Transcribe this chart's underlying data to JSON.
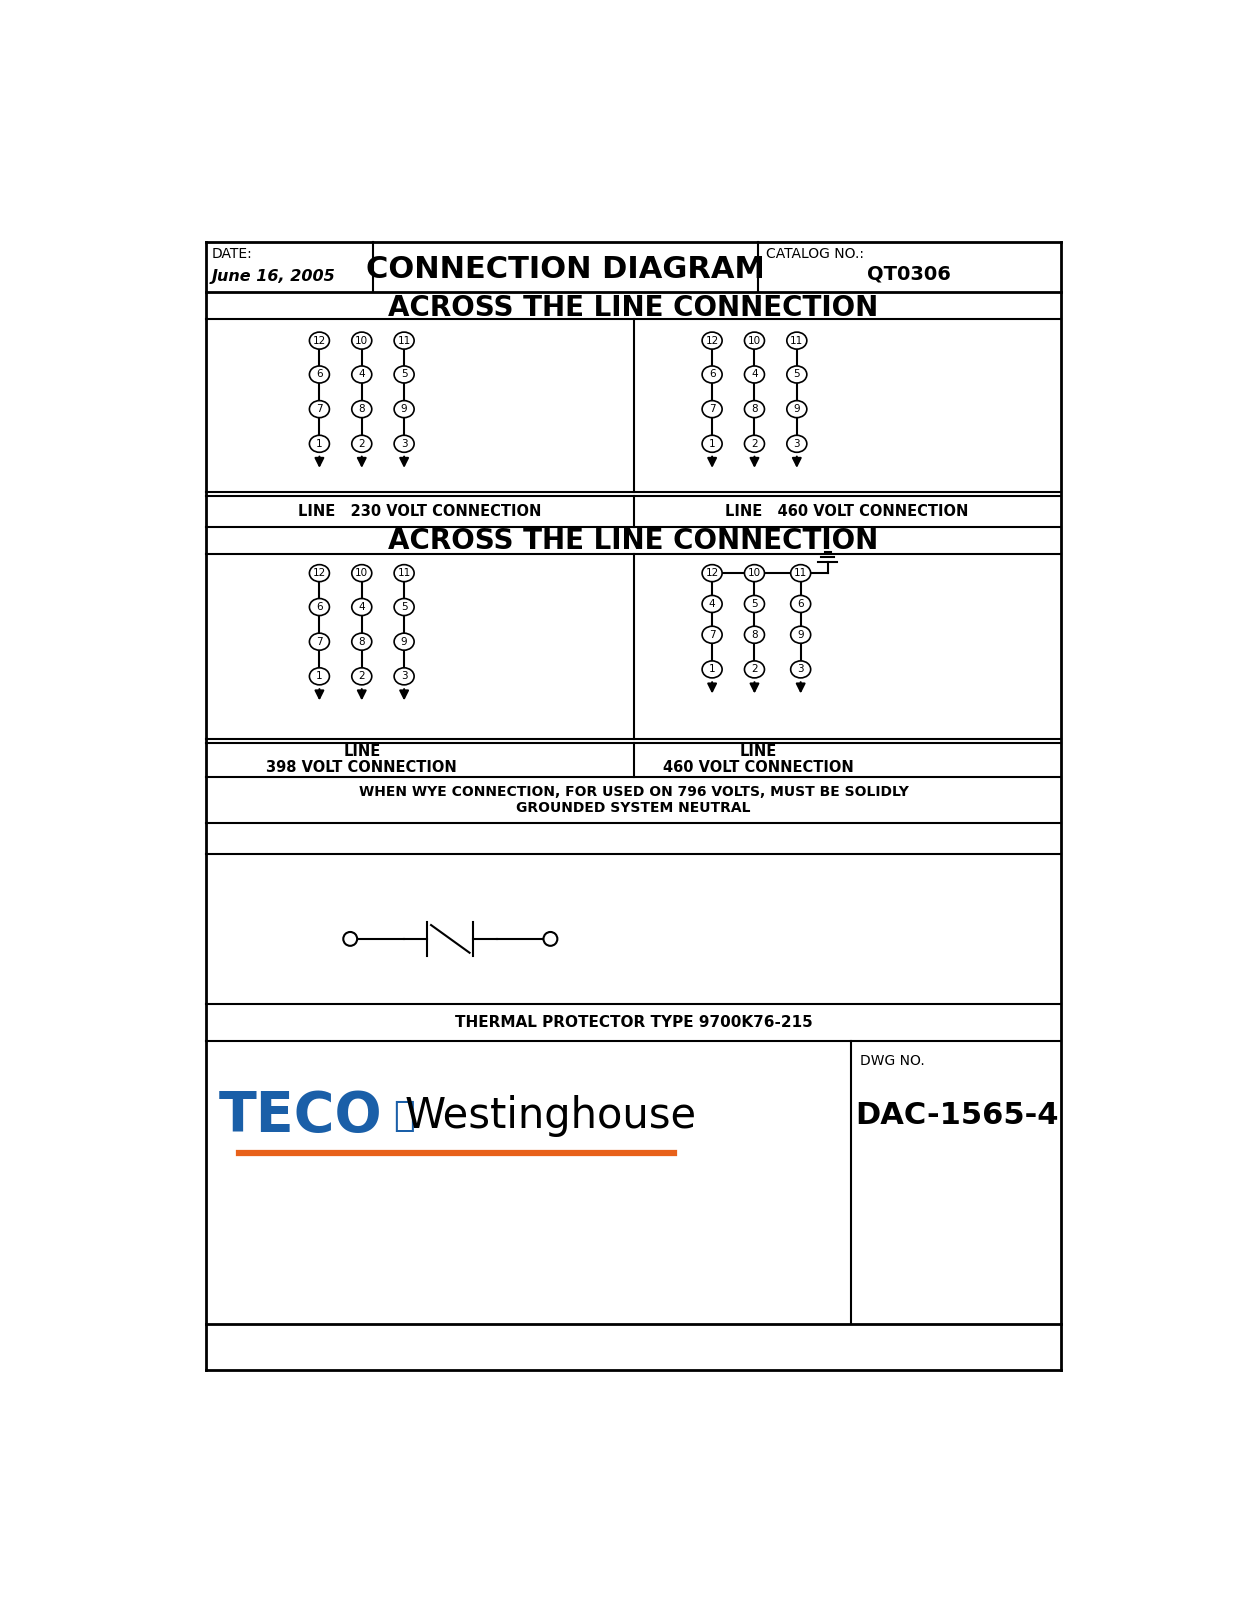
{
  "title": "CONNECTION DIAGRAM",
  "date_label": "DATE:",
  "date_value": "June 16, 2005",
  "catalog_label": "CATALOG NO.:",
  "catalog_value": "QT0306",
  "section1_title": "ACROSS THE LINE CONNECTION",
  "section2_title": "ACROSS THE LINE CONNECTION",
  "label_230": "LINE   230 VOLT CONNECTION",
  "label_460a": "LINE   460 VOLT CONNECTION",
  "label_398_line1": "LINE",
  "label_398_line2": "398 VOLT CONNECTION",
  "label_460b_line1": "LINE",
  "label_460b_line2": "460 VOLT CONNECTION",
  "warning_text": "WHEN WYE CONNECTION, FOR USED ON 796 VOLTS, MUST BE SOLIDLY\nGROUNDED SYSTEM NEUTRAL",
  "thermal_text": "THERMAL PROTECTOR TYPE 9700K76-215",
  "dwg_label": "DWG NO.",
  "dwg_value": "DAC-1565-4",
  "bg_color": "#ffffff",
  "border_color": "#000000",
  "text_color": "#000000",
  "teco_blue": "#1a5fa8",
  "teco_orange": "#e8611a"
}
